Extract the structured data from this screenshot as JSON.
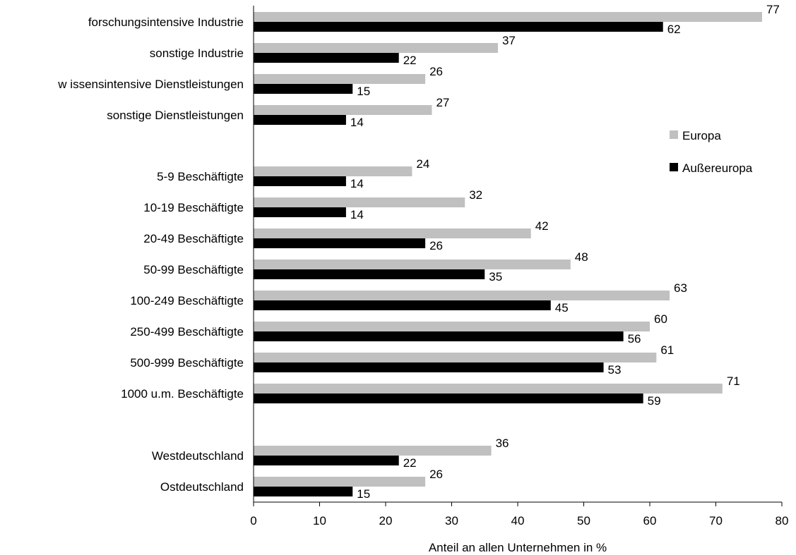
{
  "chart_data": {
    "type": "bar",
    "orientation": "horizontal",
    "categories": [
      "forschungsintensive Industrie",
      "sonstige Industrie",
      "w issensintensive Dienstleistungen",
      "sonstige Dienstleistungen",
      "5-9 Beschäftigte",
      "10-19 Beschäftigte",
      "20-49 Beschäftigte",
      "50-99 Beschäftigte",
      "100-249 Beschäftigte",
      "250-499 Beschäftigte",
      "500-999 Beschäftigte",
      "1000 u.m. Beschäftigte",
      "Westdeutschland",
      "Ostdeutschland"
    ],
    "groups": [
      {
        "categories": [
          0,
          1,
          2,
          3
        ]
      },
      {
        "categories": [
          4,
          5,
          6,
          7,
          8,
          9,
          10,
          11
        ]
      },
      {
        "categories": [
          12,
          13
        ]
      }
    ],
    "series": [
      {
        "name": "Europa",
        "color": "#c0c0c0",
        "values": [
          77,
          37,
          26,
          27,
          24,
          32,
          42,
          48,
          63,
          60,
          61,
          71,
          36,
          26
        ]
      },
      {
        "name": "Außereuropa",
        "color": "#000000",
        "values": [
          62,
          22,
          15,
          14,
          14,
          14,
          26,
          35,
          45,
          56,
          53,
          59,
          22,
          15
        ]
      }
    ],
    "xlabel": "Anteil an allen Unternehmen in %",
    "ylabel": "",
    "xlim": [
      0,
      80
    ],
    "xticks": [
      0,
      10,
      20,
      30,
      40,
      50,
      60,
      70,
      80
    ],
    "grid": false,
    "legend_position": "right"
  }
}
